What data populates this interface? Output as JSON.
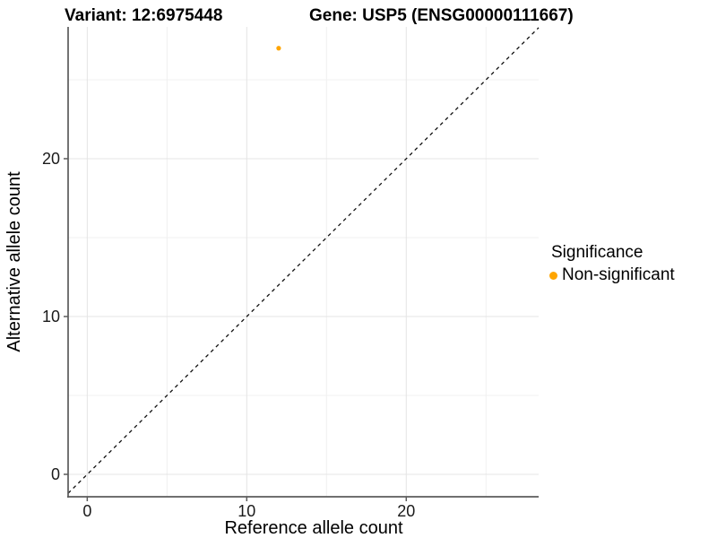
{
  "chart_data": {
    "type": "scatter",
    "titles": [
      "Variant: 12:6975448",
      "Gene: USP5 (ENSG00000111667)"
    ],
    "xlabel": "Reference allele count",
    "ylabel": "Alternative allele count",
    "xlim": [
      -1.2,
      28.3
    ],
    "ylim": [
      -1.42,
      28.35
    ],
    "x_ticks": [
      0,
      10,
      20
    ],
    "y_ticks": [
      0,
      10,
      20
    ],
    "x_gridlines_major": [
      0,
      10,
      20
    ],
    "x_gridlines_minor": [
      5,
      15,
      25
    ],
    "y_gridlines_major": [
      0,
      10,
      20
    ],
    "y_gridlines_minor": [
      5,
      15,
      25
    ],
    "grid": true,
    "points": [
      {
        "x": 12,
        "y": 27,
        "series": "Non-significant"
      }
    ],
    "identity_line": {
      "slope": 1,
      "intercept": 0,
      "style": "dashed",
      "color": "#111111"
    },
    "legend": {
      "title": "Significance",
      "position": "right",
      "items": [
        {
          "label": "Non-significant",
          "color": "#FFA500"
        }
      ]
    }
  },
  "colors": {
    "background": "#FFFFFF",
    "gridline_major": "#E4E4E4",
    "gridline_minor": "#F0F0F0",
    "axis_line": "#5B5B5B",
    "tick_mark": "#5B5B5B",
    "tick_label": "#1A1A1A",
    "axis_title": "#000000",
    "point": "#FFA500"
  }
}
